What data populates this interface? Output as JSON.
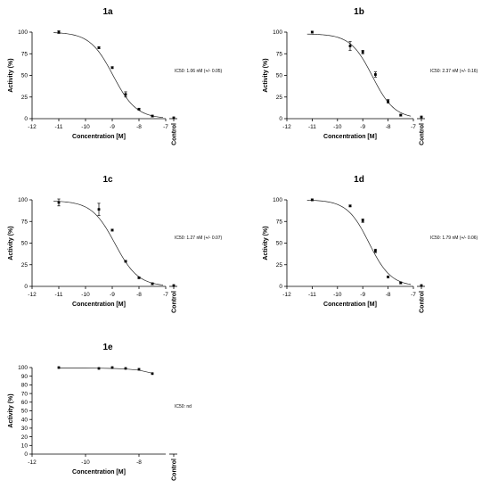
{
  "chart_data": [
    {
      "type": "scatter",
      "title": "1a",
      "xlabel": "Concentration [M]",
      "ylabel": "Activity (%)",
      "xlim": [
        -12,
        -7
      ],
      "ylim": [
        0,
        100
      ],
      "xticks": [
        "-12",
        "-11",
        "-10",
        "-9",
        "-8",
        "-7"
      ],
      "yticks": [
        "0",
        "25",
        "50",
        "75",
        "100"
      ],
      "control_label": "Control",
      "annotation": "IC50: 1.06 nM  (+/- 0.05)",
      "ic50_log": -8.97,
      "hill": 1.0,
      "curve_top": 100,
      "points": [
        {
          "x": -11,
          "y": 100,
          "err": 1.5
        },
        {
          "x": -9.5,
          "y": 82,
          "err": 1
        },
        {
          "x": -9,
          "y": 59,
          "err": 1
        },
        {
          "x": -8.5,
          "y": 28,
          "err": 3
        },
        {
          "x": -8,
          "y": 11,
          "err": 1
        },
        {
          "x": -7.5,
          "y": 3,
          "err": 1
        }
      ],
      "control_value": 1
    },
    {
      "type": "scatter",
      "title": "1b",
      "xlabel": "Concentration [M]",
      "ylabel": "Activity (%)",
      "xlim": [
        -12,
        -7
      ],
      "ylim": [
        0,
        100
      ],
      "xticks": [
        "-12",
        "-11",
        "-10",
        "-9",
        "-8",
        "-7"
      ],
      "yticks": [
        "0",
        "25",
        "50",
        "75",
        "100"
      ],
      "control_label": "Control",
      "annotation": "IC50: 2.37 nM  (+/- 0.16)",
      "ic50_log": -8.62,
      "hill": 1.0,
      "curve_top": 98,
      "points": [
        {
          "x": -11,
          "y": 100,
          "err": 1
        },
        {
          "x": -9.5,
          "y": 84,
          "err": 5
        },
        {
          "x": -9,
          "y": 77,
          "err": 2
        },
        {
          "x": -8.5,
          "y": 51,
          "err": 3
        },
        {
          "x": -8,
          "y": 20,
          "err": 2
        },
        {
          "x": -7.5,
          "y": 4,
          "err": 1
        }
      ],
      "control_value": 2
    },
    {
      "type": "scatter",
      "title": "1c",
      "xlabel": "Concentration [M]",
      "ylabel": "Activity (%)",
      "xlim": [
        -12,
        -7
      ],
      "ylim": [
        0,
        100
      ],
      "xticks": [
        "-12",
        "-11",
        "-10",
        "-9",
        "-8",
        "-7"
      ],
      "yticks": [
        "0",
        "25",
        "50",
        "75",
        "100"
      ],
      "control_label": "Control",
      "annotation": "IC50: 1.27 nM  (+/- 0.07)",
      "ic50_log": -8.9,
      "hill": 1.0,
      "curve_top": 99,
      "points": [
        {
          "x": -11,
          "y": 97,
          "err": 4
        },
        {
          "x": -9.5,
          "y": 89,
          "err": 7
        },
        {
          "x": -9,
          "y": 65,
          "err": 1
        },
        {
          "x": -8.5,
          "y": 29,
          "err": 1
        },
        {
          "x": -8,
          "y": 10,
          "err": 1
        },
        {
          "x": -7.5,
          "y": 3,
          "err": 1
        }
      ],
      "control_value": 1
    },
    {
      "type": "scatter",
      "title": "1d",
      "xlabel": "Concentration [M]",
      "ylabel": "Activity (%)",
      "xlim": [
        -12,
        -7
      ],
      "ylim": [
        0,
        100
      ],
      "xticks": [
        "-12",
        "-11",
        "-10",
        "-9",
        "-8",
        "-7"
      ],
      "yticks": [
        "0",
        "25",
        "50",
        "75",
        "100"
      ],
      "control_label": "Control",
      "annotation": "IC50: 1.79 nM  (+/- 0.06)",
      "ic50_log": -8.75,
      "hill": 1.0,
      "curve_top": 100,
      "points": [
        {
          "x": -11,
          "y": 100,
          "err": 1
        },
        {
          "x": -9.5,
          "y": 93,
          "err": 1
        },
        {
          "x": -9,
          "y": 76,
          "err": 2
        },
        {
          "x": -8.5,
          "y": 41,
          "err": 2
        },
        {
          "x": -8,
          "y": 11,
          "err": 1
        },
        {
          "x": -7.5,
          "y": 4,
          "err": 1
        }
      ],
      "control_value": 1
    },
    {
      "type": "scatter",
      "title": "1e",
      "xlabel": "Concentration [M]",
      "ylabel": "Activity (%)",
      "xlim": [
        -12,
        -7
      ],
      "ylim": [
        0,
        100
      ],
      "xticks": [
        "-12",
        "-10",
        "-8"
      ],
      "yticks": [
        "0",
        "10",
        "20",
        "30",
        "40",
        "50",
        "60",
        "70",
        "80",
        "90",
        "100"
      ],
      "control_label": "Control",
      "annotation": "IC50: nd",
      "curve": [
        [
          -11,
          99.6
        ],
        [
          -10,
          99.5
        ],
        [
          -9.5,
          99.3
        ],
        [
          -9,
          99
        ],
        [
          -8.5,
          98.4
        ],
        [
          -8,
          97
        ],
        [
          -7.5,
          93.5
        ]
      ],
      "points": [
        {
          "x": -11,
          "y": 100,
          "err": 0.5
        },
        {
          "x": -9.5,
          "y": 99,
          "err": 0.5
        },
        {
          "x": -9,
          "y": 100,
          "err": 0.5
        },
        {
          "x": -8.5,
          "y": 99,
          "err": 0.5
        },
        {
          "x": -8,
          "y": 98,
          "err": 0.5
        },
        {
          "x": -7.5,
          "y": 93,
          "err": 0.5
        }
      ]
    }
  ]
}
